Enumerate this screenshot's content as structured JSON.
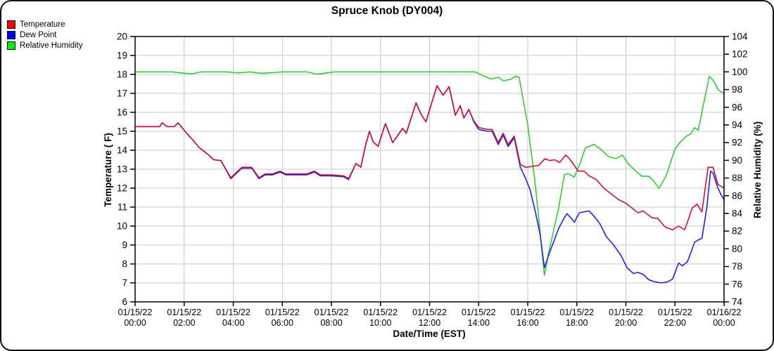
{
  "title": "Spruce Knob (DY004)",
  "legend": {
    "items": [
      {
        "label": "Temperature",
        "color": "#ff0000"
      },
      {
        "label": "Dew Point",
        "color": "#0000ff"
      },
      {
        "label": "Relative Humidity",
        "color": "#00ee00"
      }
    ]
  },
  "chart_data": {
    "type": "line",
    "title": "Spruce Knob (DY004)",
    "xlabel": "Date/Time (EST)",
    "ylabel_left": "Temperature ( F)",
    "ylabel_right": "Relative Humidity (%)",
    "left_axis": {
      "min": 6,
      "max": 20,
      "step": 1
    },
    "right_axis": {
      "min": 74,
      "max": 104,
      "step": 2
    },
    "x_hours_range": [
      0,
      24
    ],
    "x_ticks": [
      {
        "date": "01/15/22",
        "time": "00:00"
      },
      {
        "date": "01/15/22",
        "time": "02:00"
      },
      {
        "date": "01/15/22",
        "time": "04:00"
      },
      {
        "date": "01/15/22",
        "time": "06:00"
      },
      {
        "date": "01/15/22",
        "time": "08:00"
      },
      {
        "date": "01/15/22",
        "time": "10:00"
      },
      {
        "date": "01/15/22",
        "time": "12:00"
      },
      {
        "date": "01/15/22",
        "time": "14:00"
      },
      {
        "date": "01/15/22",
        "time": "16:00"
      },
      {
        "date": "01/15/22",
        "time": "18:00"
      },
      {
        "date": "01/15/22",
        "time": "20:00"
      },
      {
        "date": "01/15/22",
        "time": "22:00"
      },
      {
        "date": "01/16/22",
        "time": "00:00"
      }
    ],
    "series": [
      {
        "name": "Temperature",
        "axis": "left",
        "color": "#cc1133",
        "x": [
          0,
          0.33,
          0.67,
          1.0,
          1.1,
          1.3,
          1.6,
          1.75,
          2.1,
          2.45,
          2.6,
          3.0,
          3.2,
          3.5,
          3.9,
          4.35,
          4.75,
          5.05,
          5.3,
          5.6,
          5.9,
          6.15,
          6.6,
          7.0,
          7.3,
          7.55,
          8.0,
          8.5,
          8.7,
          9.0,
          9.2,
          9.4,
          9.55,
          9.7,
          9.9,
          10.2,
          10.5,
          10.9,
          11.05,
          11.45,
          11.65,
          11.85,
          12.3,
          12.55,
          12.8,
          13.05,
          13.25,
          13.4,
          13.6,
          13.8,
          14.0,
          14.35,
          14.55,
          14.8,
          15.0,
          15.2,
          15.45,
          15.7,
          15.9,
          16.2,
          16.45,
          16.7,
          16.9,
          17.1,
          17.3,
          17.55,
          17.7,
          17.9,
          18.05,
          18.3,
          18.5,
          18.8,
          19.1,
          19.4,
          19.7,
          20.0,
          20.3,
          20.5,
          20.7,
          21.05,
          21.3,
          21.6,
          21.9,
          22.15,
          22.4,
          22.7,
          22.9,
          23.1,
          23.35,
          23.55,
          23.75,
          24
        ],
        "y": [
          15.25,
          15.25,
          15.25,
          15.25,
          15.45,
          15.25,
          15.25,
          15.45,
          14.9,
          14.4,
          14.15,
          13.75,
          13.5,
          13.45,
          12.55,
          13.1,
          13.1,
          12.55,
          12.75,
          12.75,
          12.9,
          12.75,
          12.75,
          12.75,
          12.9,
          12.7,
          12.7,
          12.65,
          12.5,
          13.3,
          13.1,
          14.3,
          15.0,
          14.45,
          14.2,
          15.4,
          14.4,
          15.15,
          14.9,
          16.5,
          15.9,
          15.5,
          17.4,
          16.9,
          17.35,
          15.85,
          16.35,
          15.7,
          16.15,
          15.55,
          15.2,
          15.1,
          15.1,
          14.4,
          14.9,
          14.3,
          14.75,
          13.25,
          13.1,
          13.15,
          13.2,
          13.55,
          13.45,
          13.5,
          13.35,
          13.75,
          13.55,
          13.2,
          12.9,
          12.9,
          12.65,
          12.45,
          12.0,
          11.7,
          11.4,
          11.2,
          10.9,
          10.7,
          10.8,
          10.45,
          10.4,
          9.95,
          9.8,
          10.0,
          9.8,
          10.95,
          11.15,
          10.75,
          13.1,
          13.1,
          12.2,
          12.0
        ]
      },
      {
        "name": "Dew Point",
        "axis": "left",
        "color": "#2222dd",
        "x": [
          0,
          0.33,
          0.67,
          1.0,
          1.1,
          1.3,
          1.6,
          1.75,
          2.1,
          2.45,
          2.6,
          3.0,
          3.2,
          3.5,
          3.9,
          4.35,
          4.75,
          5.05,
          5.3,
          5.6,
          5.9,
          6.15,
          6.6,
          7.0,
          7.3,
          7.55,
          8.0,
          8.5,
          8.7,
          9.0,
          9.2,
          9.4,
          9.55,
          9.7,
          9.9,
          10.2,
          10.5,
          10.9,
          11.05,
          11.45,
          11.65,
          11.85,
          12.3,
          12.55,
          12.8,
          13.05,
          13.25,
          13.4,
          13.6,
          13.8,
          14.0,
          14.35,
          14.55,
          14.8,
          15.0,
          15.2,
          15.45,
          15.7,
          15.9,
          16.1,
          16.3,
          16.5,
          16.68,
          16.85,
          17.05,
          17.25,
          17.45,
          17.6,
          17.75,
          17.9,
          18.1,
          18.5,
          18.75,
          18.95,
          19.2,
          19.5,
          19.8,
          20.05,
          20.3,
          20.5,
          20.7,
          20.95,
          21.2,
          21.45,
          21.7,
          21.9,
          22.05,
          22.15,
          22.3,
          22.5,
          22.65,
          22.8,
          23.0,
          23.1,
          23.3,
          23.45,
          23.55,
          23.75,
          23.9,
          24
        ],
        "y": [
          15.25,
          15.25,
          15.25,
          15.25,
          15.45,
          15.25,
          15.25,
          15.45,
          14.9,
          14.4,
          14.15,
          13.75,
          13.5,
          13.45,
          12.5,
          13.05,
          13.05,
          12.5,
          12.7,
          12.7,
          12.85,
          12.7,
          12.7,
          12.7,
          12.85,
          12.65,
          12.65,
          12.6,
          12.45,
          13.3,
          13.1,
          14.3,
          15.0,
          14.45,
          14.2,
          15.4,
          14.4,
          15.15,
          14.9,
          16.5,
          15.9,
          15.5,
          17.4,
          16.9,
          17.35,
          15.85,
          16.35,
          15.7,
          16.15,
          15.5,
          15.1,
          15.0,
          15.0,
          14.3,
          14.8,
          14.2,
          14.65,
          13.1,
          12.55,
          11.9,
          10.8,
          9.6,
          7.8,
          8.45,
          9.15,
          9.85,
          10.35,
          10.65,
          10.45,
          10.2,
          10.7,
          10.8,
          10.45,
          10.1,
          9.45,
          9.0,
          8.45,
          7.8,
          7.5,
          7.55,
          7.45,
          7.15,
          7.05,
          7.0,
          7.05,
          7.2,
          7.7,
          8.05,
          7.9,
          8.1,
          8.6,
          9.15,
          9.3,
          9.35,
          11.0,
          12.9,
          12.8,
          12.0,
          11.6,
          11.4
        ]
      },
      {
        "name": "Relative Humidity",
        "axis": "right",
        "color": "#33cc33",
        "x": [
          0,
          0.5,
          1.0,
          1.5,
          2.0,
          2.35,
          2.7,
          3.2,
          3.7,
          4.2,
          4.7,
          5.1,
          5.5,
          6.0,
          6.5,
          7.0,
          7.4,
          7.7,
          8.1,
          8.6,
          9.1,
          9.6,
          10.1,
          10.6,
          11.1,
          11.6,
          12.1,
          12.6,
          13.1,
          13.5,
          13.86,
          14.15,
          14.5,
          14.8,
          15.0,
          15.3,
          15.5,
          15.65,
          16.0,
          16.3,
          16.68,
          16.85,
          17.05,
          17.25,
          17.5,
          17.65,
          17.9,
          18.15,
          18.35,
          18.7,
          19.0,
          19.3,
          19.6,
          19.85,
          20.1,
          20.4,
          20.65,
          20.95,
          21.15,
          21.35,
          21.65,
          22.0,
          22.2,
          22.5,
          22.65,
          22.8,
          22.95,
          23.15,
          23.4,
          23.6,
          23.75,
          23.9,
          24
        ],
        "y": [
          100,
          100,
          100,
          100,
          99.85,
          99.8,
          100,
          100,
          100,
          99.9,
          100,
          99.85,
          99.9,
          100,
          100,
          100,
          99.75,
          99.85,
          100,
          100,
          100,
          100,
          100,
          100,
          100,
          100,
          100,
          100,
          100,
          100,
          100,
          99.6,
          99.2,
          99.4,
          99.0,
          99.15,
          99.5,
          99.4,
          94.0,
          87.5,
          77.0,
          79.5,
          82.0,
          84.5,
          88.4,
          88.5,
          88.1,
          89.8,
          91.4,
          91.8,
          91.2,
          90.4,
          90.2,
          90.6,
          89.6,
          88.8,
          88.2,
          88.2,
          87.6,
          86.8,
          88.3,
          91.3,
          92.0,
          92.8,
          93.0,
          93.7,
          93.4,
          96.2,
          99.5,
          98.9,
          98.0,
          97.7,
          97.6
        ]
      }
    ]
  }
}
